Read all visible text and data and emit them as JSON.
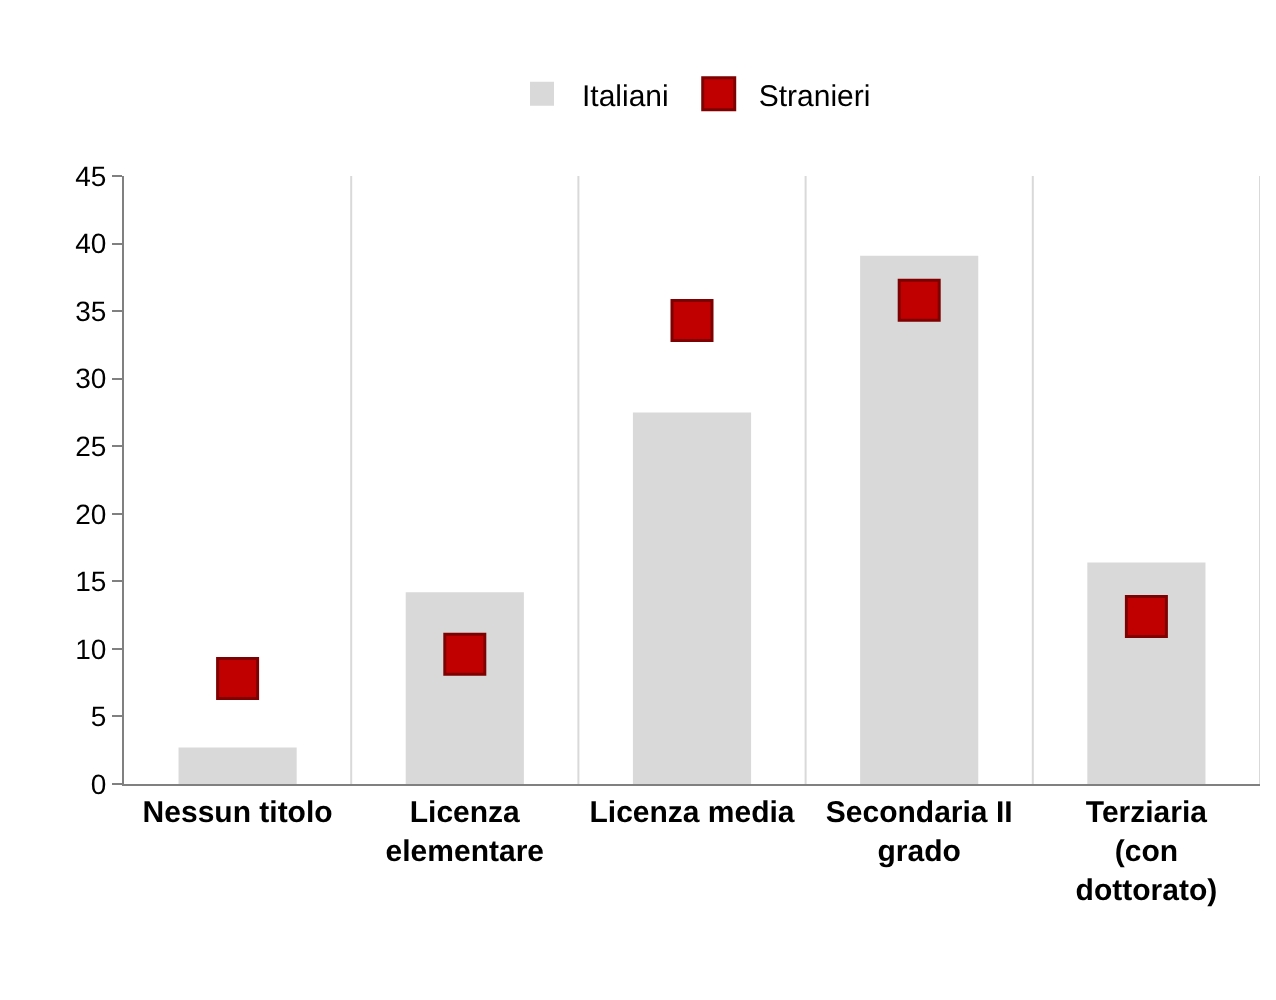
{
  "chart_data": {
    "type": "bar",
    "categories": [
      "Nessun titolo",
      "Licenza elementare",
      "Licenza media",
      "Secondaria II grado",
      "Terziaria (con dottorato)"
    ],
    "series": [
      {
        "name": "Italiani",
        "color": "#d9d9d9",
        "values": [
          2.7,
          14.2,
          27.5,
          39.1,
          16.4
        ]
      },
      {
        "name": "Stranieri",
        "type": "scatter",
        "color": "#c00000",
        "values": [
          7.8,
          9.6,
          34.3,
          35.8,
          12.4
        ]
      }
    ],
    "ylim": [
      0,
      45
    ],
    "yticks": [
      0,
      5,
      10,
      15,
      20,
      25,
      30,
      35,
      40,
      45
    ],
    "grid": "x",
    "legend": "top",
    "marker": "square"
  }
}
